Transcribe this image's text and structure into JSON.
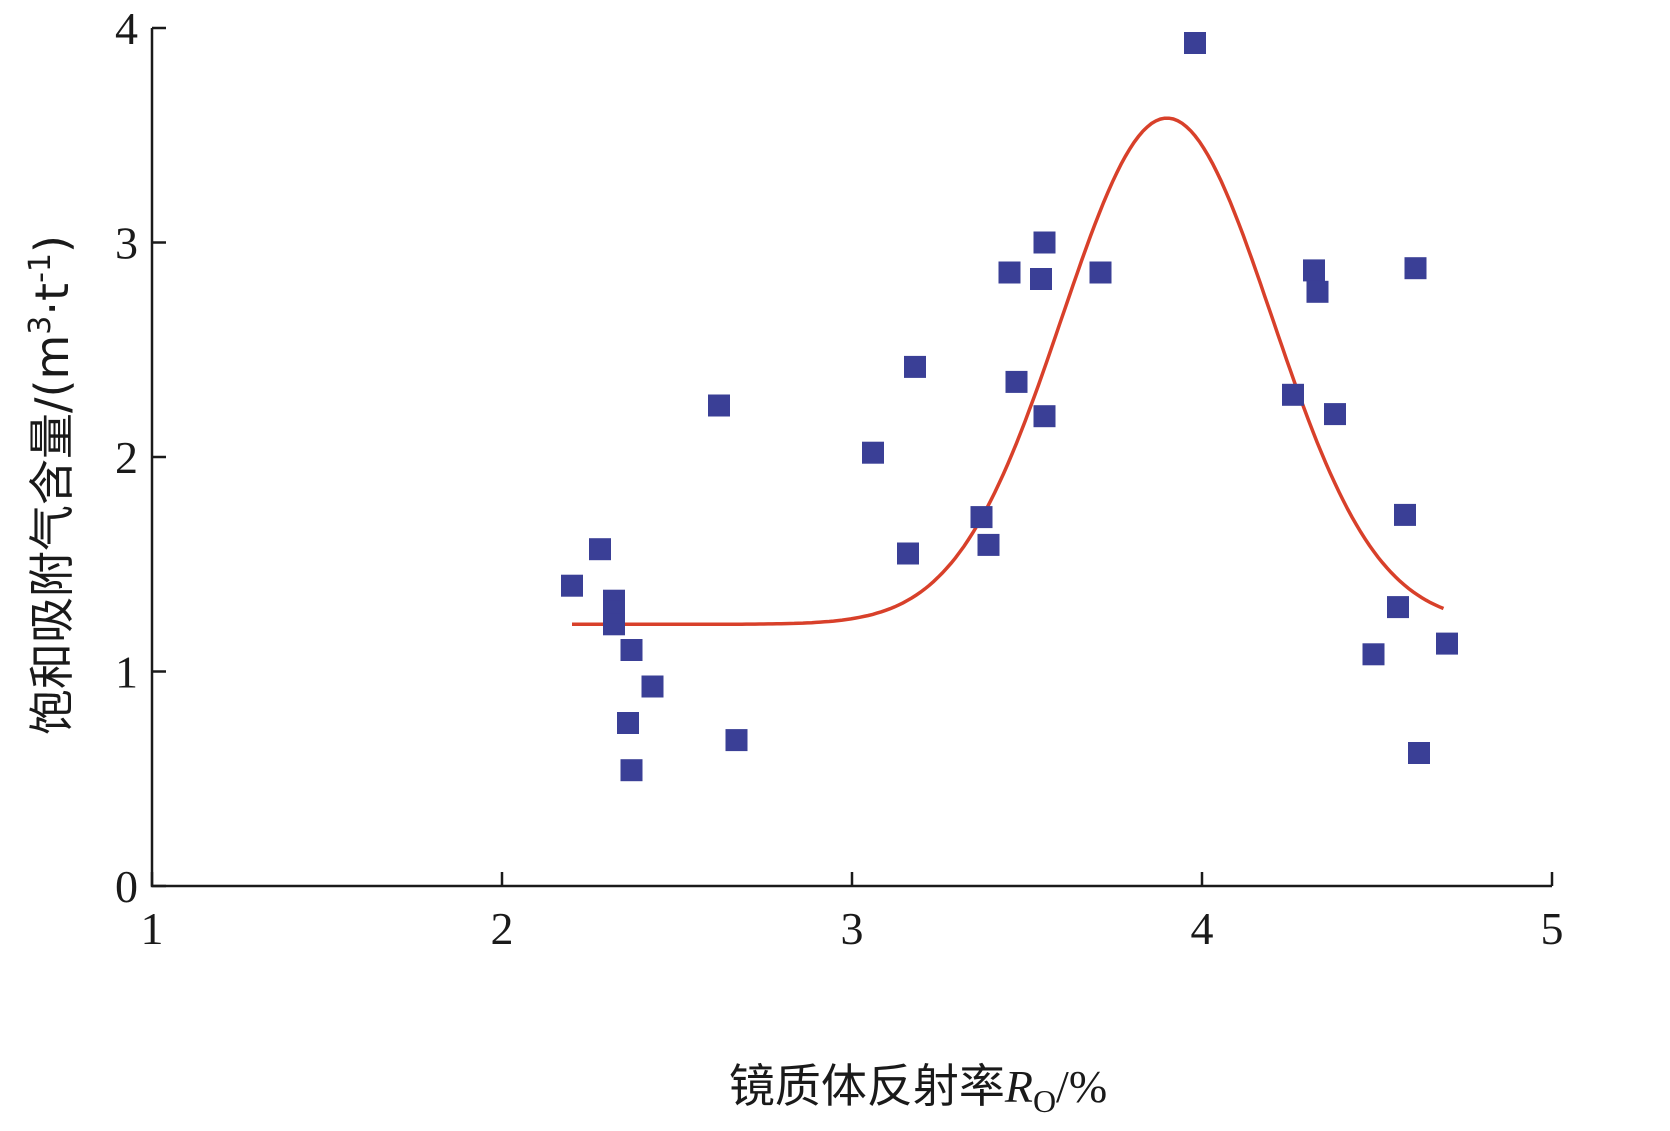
{
  "chart_data": {
    "type": "scatter",
    "xlabel": {
      "main": "镜质体反射率",
      "var": "R",
      "sub": "O",
      "unit": "/%"
    },
    "ylabel": {
      "main": "饱和吸附气含量/(m",
      "sup1": "3",
      "mid": "·t",
      "sup2": "-1",
      "end": ")"
    },
    "xlim": [
      1,
      5
    ],
    "ylim": [
      0,
      4
    ],
    "xticks": [
      1,
      2,
      3,
      4,
      5
    ],
    "yticks": [
      0,
      1,
      2,
      3,
      4
    ],
    "grid": false,
    "marker_color": "#3a3f96",
    "fit_color": "#d8402a",
    "points": [
      {
        "x": 2.2,
        "y": 1.4
      },
      {
        "x": 2.28,
        "y": 1.57
      },
      {
        "x": 2.32,
        "y": 1.33
      },
      {
        "x": 2.32,
        "y": 1.28
      },
      {
        "x": 2.32,
        "y": 1.22
      },
      {
        "x": 2.37,
        "y": 1.1
      },
      {
        "x": 2.36,
        "y": 0.76
      },
      {
        "x": 2.37,
        "y": 0.54
      },
      {
        "x": 2.43,
        "y": 0.93
      },
      {
        "x": 2.62,
        "y": 2.24
      },
      {
        "x": 2.67,
        "y": 0.68
      },
      {
        "x": 3.06,
        "y": 2.02
      },
      {
        "x": 3.16,
        "y": 1.55
      },
      {
        "x": 3.18,
        "y": 2.42
      },
      {
        "x": 3.37,
        "y": 1.72
      },
      {
        "x": 3.39,
        "y": 1.59
      },
      {
        "x": 3.45,
        "y": 2.86
      },
      {
        "x": 3.47,
        "y": 2.35
      },
      {
        "x": 3.54,
        "y": 2.83
      },
      {
        "x": 3.55,
        "y": 3.0
      },
      {
        "x": 3.55,
        "y": 2.19
      },
      {
        "x": 3.71,
        "y": 2.86
      },
      {
        "x": 3.98,
        "y": 3.93
      },
      {
        "x": 4.26,
        "y": 2.29
      },
      {
        "x": 4.32,
        "y": 2.87
      },
      {
        "x": 4.33,
        "y": 2.77
      },
      {
        "x": 4.38,
        "y": 2.2
      },
      {
        "x": 4.49,
        "y": 1.08
      },
      {
        "x": 4.56,
        "y": 1.3
      },
      {
        "x": 4.58,
        "y": 1.73
      },
      {
        "x": 4.61,
        "y": 2.88
      },
      {
        "x": 4.62,
        "y": 0.62
      },
      {
        "x": 4.7,
        "y": 1.13
      }
    ],
    "fit_curve": {
      "type": "gaussian",
      "baseline": 1.22,
      "amplitude": 2.36,
      "center": 3.9,
      "sigma": 0.3,
      "x_start": 2.2,
      "x_end": 4.69
    }
  }
}
